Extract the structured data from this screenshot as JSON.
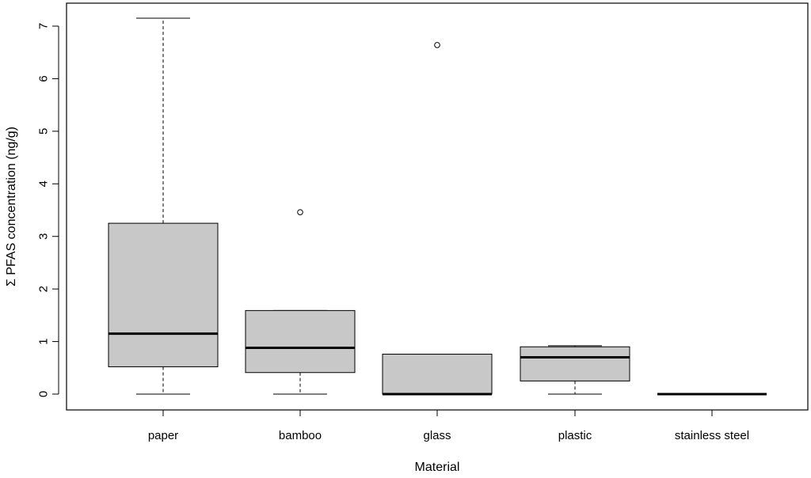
{
  "chart_data": {
    "type": "boxplot",
    "title": "",
    "xlabel": "Material",
    "ylabel": "Σ PFAS concentration (ng/g)",
    "ylim": [
      -0.3,
      7.3
    ],
    "yticks": [
      0,
      1,
      2,
      3,
      4,
      5,
      6,
      7
    ],
    "grid": false,
    "categories": [
      "paper",
      "bamboo",
      "glass",
      "plastic",
      "stainless steel"
    ],
    "boxes": [
      {
        "category": "paper",
        "whisker_low": 0,
        "q1": 0.52,
        "median": 1.15,
        "q3": 3.25,
        "whisker_high": 7.15,
        "outliers": []
      },
      {
        "category": "bamboo",
        "whisker_low": 0,
        "q1": 0.41,
        "median": 0.88,
        "q3": 1.59,
        "whisker_high": 1.59,
        "outliers": [
          3.46
        ]
      },
      {
        "category": "glass",
        "whisker_low": 0,
        "q1": 0,
        "median": 0,
        "q3": 0.76,
        "whisker_high": 0.76,
        "outliers": [
          6.64
        ]
      },
      {
        "category": "plastic",
        "whisker_low": 0,
        "q1": 0.25,
        "median": 0.7,
        "q3": 0.9,
        "whisker_high": 0.92,
        "outliers": []
      },
      {
        "category": "stainless steel",
        "whisker_low": 0,
        "q1": 0,
        "median": 0,
        "q3": 0,
        "whisker_high": 0,
        "outliers": []
      }
    ],
    "box_fill": "#c8c8c8",
    "line_color": "#000000"
  }
}
